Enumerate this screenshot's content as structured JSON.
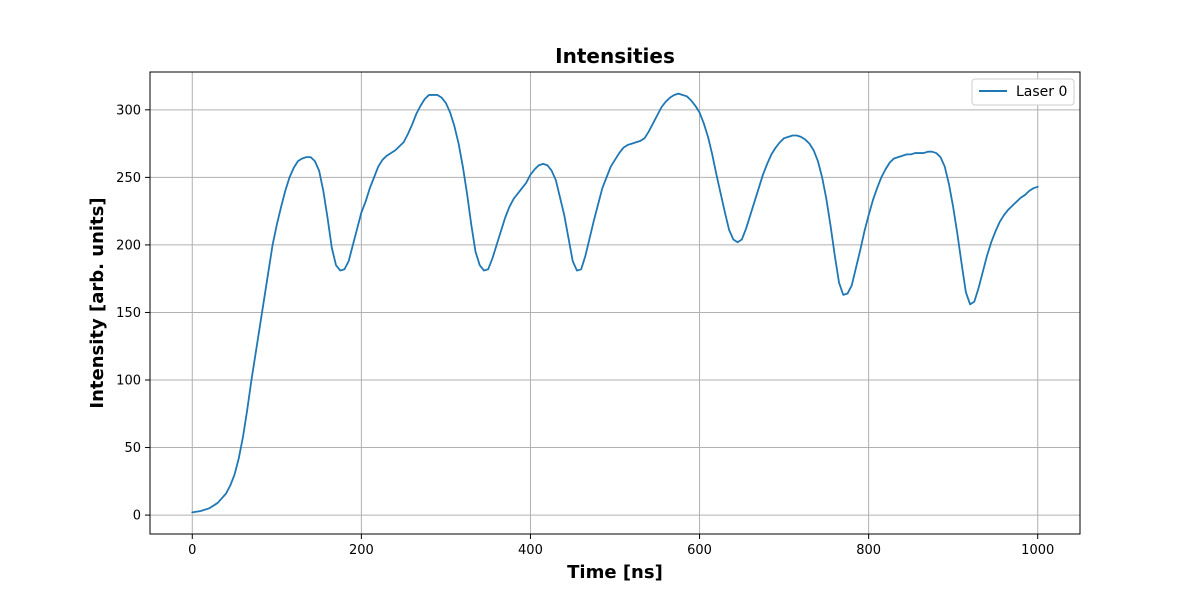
{
  "chart_data": {
    "type": "line",
    "title": "Intensities",
    "xlabel": "Time [ns]",
    "ylabel": "Intensity [arb. units]",
    "xlim": [
      -50,
      1050
    ],
    "ylim": [
      -14,
      328
    ],
    "xticks": [
      0,
      200,
      400,
      600,
      800,
      1000
    ],
    "yticks": [
      0,
      50,
      100,
      150,
      200,
      250,
      300
    ],
    "grid": true,
    "legend": "top-right",
    "series": [
      {
        "name": "Laser 0",
        "color": "#1f77b4",
        "points": [
          [
            0,
            2
          ],
          [
            10,
            3
          ],
          [
            20,
            5
          ],
          [
            30,
            9
          ],
          [
            40,
            16
          ],
          [
            45,
            22
          ],
          [
            50,
            30
          ],
          [
            55,
            42
          ],
          [
            60,
            58
          ],
          [
            65,
            78
          ],
          [
            70,
            100
          ],
          [
            75,
            120
          ],
          [
            80,
            140
          ],
          [
            85,
            160
          ],
          [
            90,
            180
          ],
          [
            95,
            200
          ],
          [
            100,
            215
          ],
          [
            105,
            228
          ],
          [
            110,
            240
          ],
          [
            115,
            250
          ],
          [
            120,
            257
          ],
          [
            125,
            262
          ],
          [
            130,
            264
          ],
          [
            135,
            265
          ],
          [
            140,
            265
          ],
          [
            145,
            262
          ],
          [
            150,
            255
          ],
          [
            155,
            240
          ],
          [
            160,
            220
          ],
          [
            165,
            198
          ],
          [
            170,
            185
          ],
          [
            175,
            181
          ],
          [
            180,
            182
          ],
          [
            185,
            188
          ],
          [
            190,
            200
          ],
          [
            195,
            212
          ],
          [
            200,
            224
          ],
          [
            205,
            232
          ],
          [
            210,
            242
          ],
          [
            215,
            250
          ],
          [
            220,
            258
          ],
          [
            225,
            263
          ],
          [
            230,
            266
          ],
          [
            240,
            270
          ],
          [
            250,
            276
          ],
          [
            255,
            282
          ],
          [
            260,
            289
          ],
          [
            265,
            297
          ],
          [
            270,
            303
          ],
          [
            275,
            308
          ],
          [
            280,
            311
          ],
          [
            285,
            311
          ],
          [
            290,
            311
          ],
          [
            295,
            309
          ],
          [
            300,
            305
          ],
          [
            305,
            298
          ],
          [
            310,
            288
          ],
          [
            315,
            275
          ],
          [
            320,
            258
          ],
          [
            325,
            238
          ],
          [
            330,
            215
          ],
          [
            335,
            195
          ],
          [
            340,
            185
          ],
          [
            345,
            181
          ],
          [
            350,
            182
          ],
          [
            355,
            190
          ],
          [
            360,
            200
          ],
          [
            365,
            210
          ],
          [
            370,
            220
          ],
          [
            375,
            228
          ],
          [
            380,
            234
          ],
          [
            385,
            238
          ],
          [
            390,
            242
          ],
          [
            395,
            246
          ],
          [
            400,
            252
          ],
          [
            405,
            256
          ],
          [
            410,
            259
          ],
          [
            415,
            260
          ],
          [
            420,
            259
          ],
          [
            425,
            255
          ],
          [
            430,
            248
          ],
          [
            435,
            235
          ],
          [
            440,
            222
          ],
          [
            445,
            205
          ],
          [
            450,
            188
          ],
          [
            455,
            181
          ],
          [
            460,
            182
          ],
          [
            465,
            192
          ],
          [
            470,
            205
          ],
          [
            475,
            218
          ],
          [
            480,
            230
          ],
          [
            485,
            242
          ],
          [
            490,
            250
          ],
          [
            495,
            258
          ],
          [
            500,
            263
          ],
          [
            505,
            268
          ],
          [
            510,
            272
          ],
          [
            515,
            274
          ],
          [
            520,
            275
          ],
          [
            525,
            276
          ],
          [
            530,
            277
          ],
          [
            535,
            279
          ],
          [
            540,
            284
          ],
          [
            545,
            290
          ],
          [
            550,
            296
          ],
          [
            555,
            302
          ],
          [
            560,
            306
          ],
          [
            565,
            309
          ],
          [
            570,
            311
          ],
          [
            575,
            312
          ],
          [
            580,
            311
          ],
          [
            585,
            310
          ],
          [
            590,
            307
          ],
          [
            595,
            303
          ],
          [
            600,
            298
          ],
          [
            605,
            290
          ],
          [
            610,
            280
          ],
          [
            615,
            267
          ],
          [
            620,
            252
          ],
          [
            625,
            238
          ],
          [
            630,
            224
          ],
          [
            635,
            211
          ],
          [
            640,
            204
          ],
          [
            645,
            202
          ],
          [
            650,
            204
          ],
          [
            655,
            212
          ],
          [
            660,
            222
          ],
          [
            665,
            232
          ],
          [
            670,
            242
          ],
          [
            675,
            252
          ],
          [
            680,
            260
          ],
          [
            685,
            267
          ],
          [
            690,
            272
          ],
          [
            695,
            276
          ],
          [
            700,
            279
          ],
          [
            705,
            280
          ],
          [
            710,
            281
          ],
          [
            715,
            281
          ],
          [
            720,
            280
          ],
          [
            725,
            278
          ],
          [
            730,
            275
          ],
          [
            735,
            270
          ],
          [
            740,
            262
          ],
          [
            745,
            250
          ],
          [
            750,
            234
          ],
          [
            755,
            214
          ],
          [
            760,
            192
          ],
          [
            765,
            172
          ],
          [
            770,
            163
          ],
          [
            775,
            164
          ],
          [
            780,
            170
          ],
          [
            785,
            183
          ],
          [
            790,
            196
          ],
          [
            795,
            210
          ],
          [
            800,
            222
          ],
          [
            805,
            233
          ],
          [
            810,
            242
          ],
          [
            815,
            250
          ],
          [
            820,
            256
          ],
          [
            825,
            261
          ],
          [
            830,
            264
          ],
          [
            835,
            265
          ],
          [
            840,
            266
          ],
          [
            845,
            267
          ],
          [
            850,
            267
          ],
          [
            855,
            268
          ],
          [
            860,
            268
          ],
          [
            865,
            268
          ],
          [
            870,
            269
          ],
          [
            875,
            269
          ],
          [
            880,
            268
          ],
          [
            885,
            265
          ],
          [
            890,
            258
          ],
          [
            895,
            245
          ],
          [
            900,
            228
          ],
          [
            905,
            208
          ],
          [
            910,
            186
          ],
          [
            915,
            165
          ],
          [
            920,
            156
          ],
          [
            925,
            158
          ],
          [
            930,
            168
          ],
          [
            935,
            180
          ],
          [
            940,
            192
          ],
          [
            945,
            202
          ],
          [
            950,
            210
          ],
          [
            955,
            217
          ],
          [
            960,
            222
          ],
          [
            965,
            226
          ],
          [
            970,
            229
          ],
          [
            975,
            232
          ],
          [
            980,
            235
          ],
          [
            985,
            237
          ],
          [
            990,
            240
          ],
          [
            995,
            242
          ],
          [
            1000,
            243
          ]
        ]
      }
    ]
  }
}
